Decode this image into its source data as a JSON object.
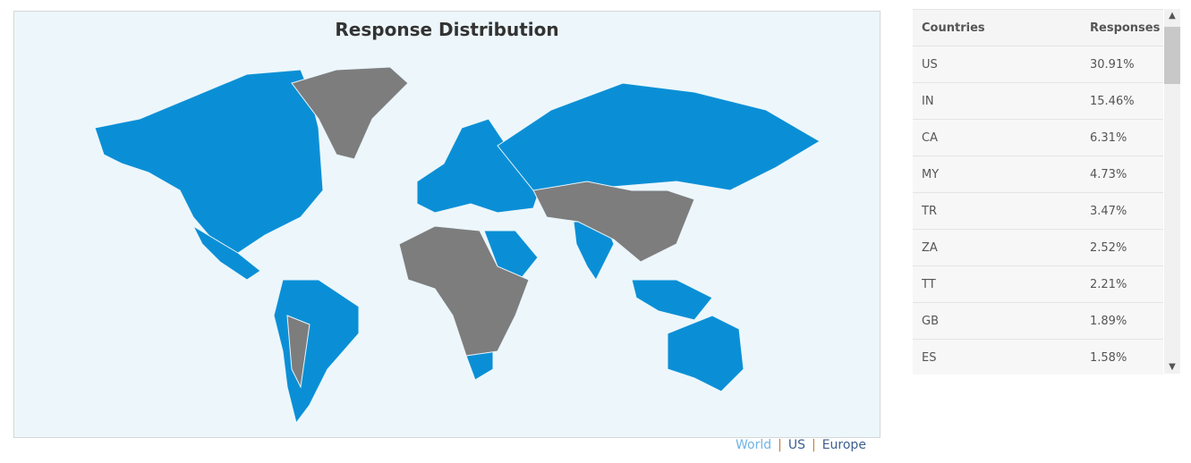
{
  "map": {
    "title": "Response Distribution",
    "colors": {
      "responded": "#0a8fd6",
      "none": "#7d7d7d",
      "background": "#edf7fb"
    }
  },
  "links": [
    {
      "label": "World",
      "active": true
    },
    {
      "label": "US"
    },
    {
      "label": "Europe"
    }
  ],
  "table": {
    "headers": [
      "Countries",
      "Responses"
    ],
    "rows": [
      [
        "US",
        "30.91%"
      ],
      [
        "IN",
        "15.46%"
      ],
      [
        "CA",
        "6.31%"
      ],
      [
        "MY",
        "4.73%"
      ],
      [
        "TR",
        "3.47%"
      ],
      [
        "ZA",
        "2.52%"
      ],
      [
        "TT",
        "2.21%"
      ],
      [
        "GB",
        "1.89%"
      ],
      [
        "ES",
        "1.58%"
      ]
    ]
  },
  "scrollbar": {
    "up_icon": "chevron-up-icon",
    "down_icon": "chevron-down-icon"
  }
}
